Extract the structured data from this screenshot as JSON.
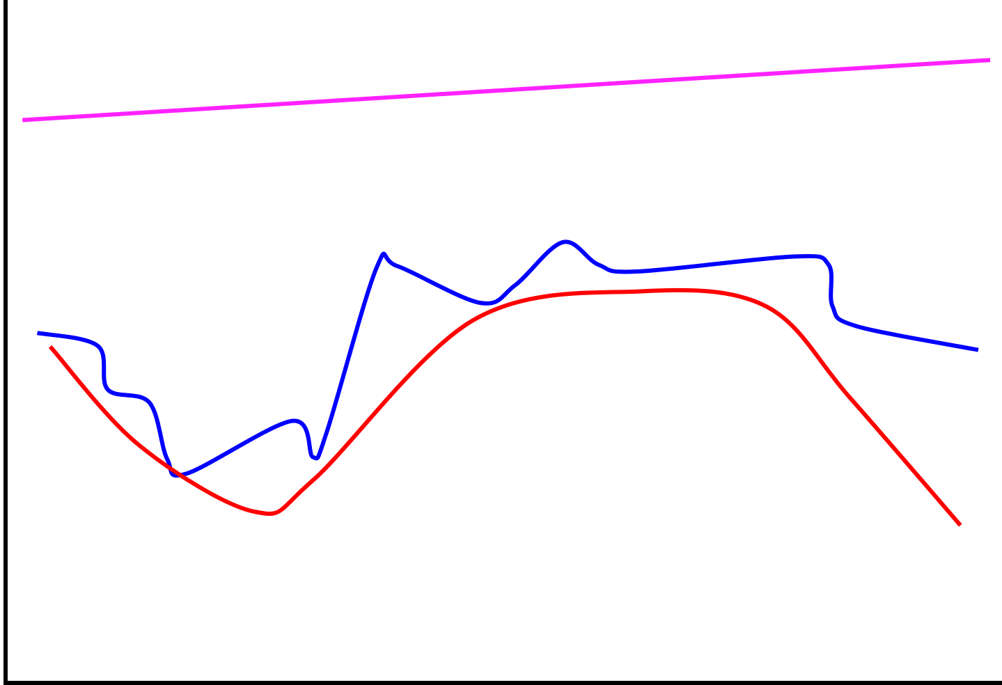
{
  "chart_data": {
    "type": "line",
    "xlim": [
      0,
      100
    ],
    "ylim": [
      0,
      100
    ],
    "series": [
      {
        "color": "#ff22ff",
        "x": [
          1.7,
          99.3
        ],
        "values": [
          82.4,
          91.2
        ]
      },
      {
        "color": "#0000ff",
        "x": [
          3.2,
          9.3,
          10.3,
          14.5,
          16.3,
          18.3,
          28.9,
          31.0,
          32.4,
          37.4,
          39.5,
          47.9,
          51.4,
          56.2,
          59.8,
          63.7,
          79.5,
          83.0,
          83.4,
          85.8,
          98.1
        ],
        "values": [
          51.2,
          49.3,
          42.9,
          41.0,
          32.7,
          30.6,
          38.3,
          33.0,
          36.7,
          60.7,
          61.0,
          55.6,
          58.2,
          64.5,
          61.2,
          60.2,
          62.4,
          61.2,
          55.1,
          52.2,
          48.7
        ]
      },
      {
        "color": "#ff0000",
        "x": [
          4.5,
          13.5,
          25.1,
          31.0,
          47.2,
          64.1,
          76.7,
          85.1,
          96.3
        ],
        "values": [
          49.2,
          34.7,
          25.0,
          29.6,
          53.1,
          57.3,
          55.1,
          41.8,
          23.0
        ]
      }
    ]
  }
}
